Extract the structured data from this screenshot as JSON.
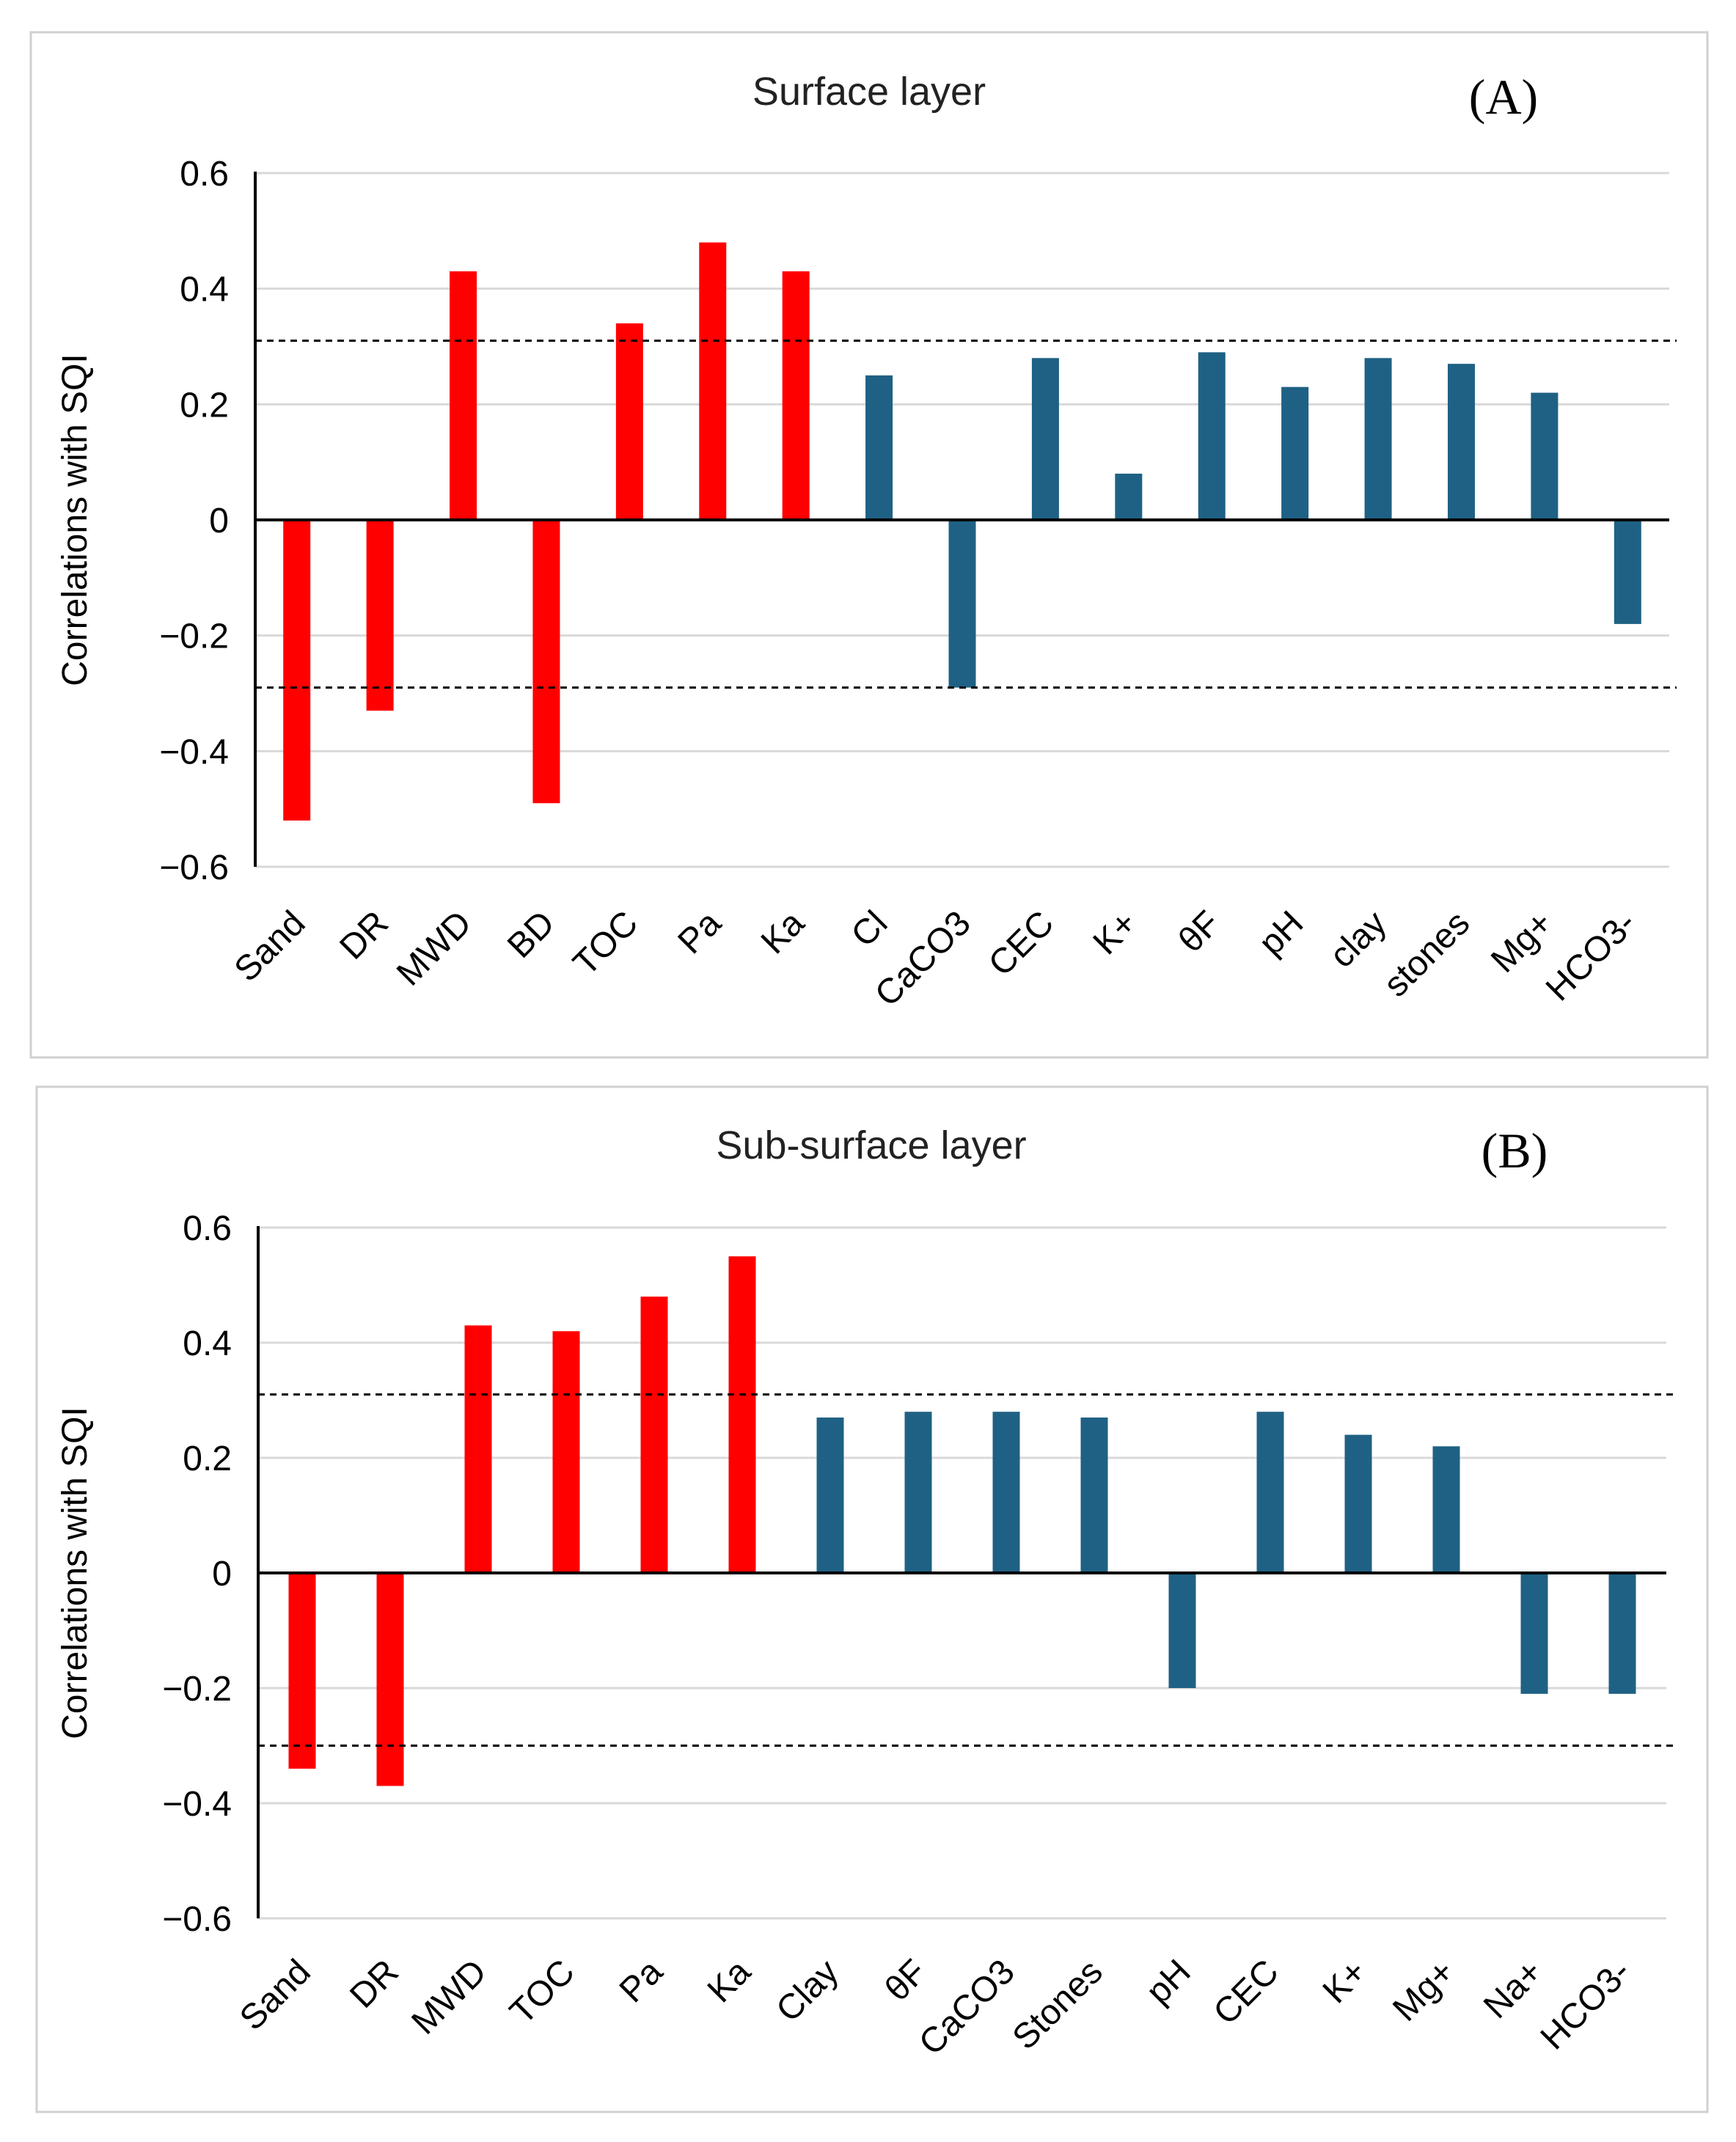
{
  "chart_data": [
    {
      "type": "bar",
      "title": "Surface layer",
      "panel_label": "(A)",
      "xlabel": "",
      "ylabel": "Correlations with SQI",
      "ylim": [
        -0.6,
        0.6
      ],
      "yticks": [
        0.6,
        0.4,
        0.2,
        0,
        -0.2,
        -0.4,
        -0.6
      ],
      "ytick_labels": [
        "0.6",
        "0.4",
        "0.2",
        "0",
        "−0.2",
        "−0.4",
        "−0.6"
      ],
      "reference_lines": [
        0.31,
        -0.29
      ],
      "grid": true,
      "colors": {
        "significant": "#ff0000",
        "non_significant": "#1f6184"
      },
      "categories": [
        "Sand",
        "DR",
        "MWD",
        "BD",
        "TOC",
        "Pa",
        "Ka",
        "Cl",
        "CaCO3",
        "CEC",
        "K+",
        "θF",
        "pH",
        "clay",
        "stones",
        "Mg+",
        "HCO3-"
      ],
      "values": [
        -0.52,
        -0.33,
        0.43,
        -0.49,
        0.34,
        0.48,
        0.43,
        0.25,
        -0.29,
        0.28,
        0.08,
        0.29,
        0.23,
        0.28,
        0.27,
        0.22,
        -0.18
      ],
      "significant": [
        true,
        true,
        true,
        true,
        true,
        true,
        true,
        false,
        false,
        false,
        false,
        false,
        false,
        false,
        false,
        false,
        false
      ]
    },
    {
      "type": "bar",
      "title": "Sub-surface layer",
      "panel_label": "(B)",
      "xlabel": "",
      "ylabel": "Correlations with SQI",
      "ylim": [
        -0.6,
        0.6
      ],
      "yticks": [
        0.6,
        0.4,
        0.2,
        0,
        -0.2,
        -0.4,
        -0.6
      ],
      "ytick_labels": [
        "0.6",
        "0.4",
        "0.2",
        "0",
        "−0.2",
        "−0.4",
        "−0.6"
      ],
      "reference_lines": [
        0.31,
        -0.3
      ],
      "grid": true,
      "colors": {
        "significant": "#ff0000",
        "non_significant": "#1f6184"
      },
      "categories": [
        "Sand",
        "DR",
        "MWD",
        "TOC",
        "Pa",
        "Ka",
        "Clay",
        "θF",
        "CaCO3",
        "Stones",
        "pH",
        "CEC",
        "K+",
        "Mg+",
        "Na+",
        "HCO3-"
      ],
      "values": [
        -0.34,
        -0.37,
        0.43,
        0.42,
        0.48,
        0.55,
        0.27,
        0.28,
        0.28,
        0.27,
        -0.2,
        0.28,
        0.24,
        0.22,
        -0.21,
        -0.21
      ],
      "significant": [
        true,
        true,
        true,
        true,
        true,
        true,
        false,
        false,
        false,
        false,
        false,
        false,
        false,
        false,
        false,
        false
      ]
    }
  ]
}
